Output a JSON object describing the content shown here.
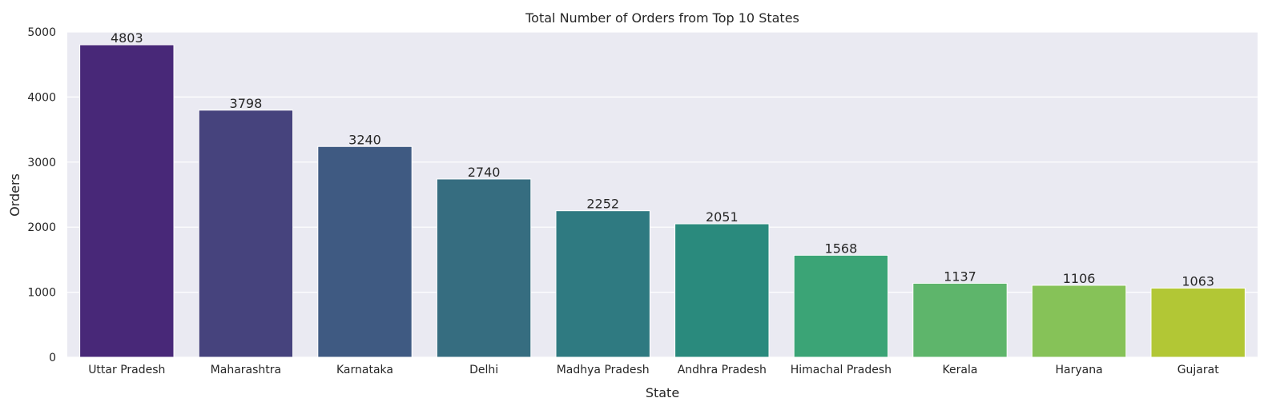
{
  "chart_data": {
    "type": "bar",
    "title": "Total Number of Orders from Top 10 States",
    "xlabel": "State",
    "ylabel": "Orders",
    "categories": [
      "Uttar Pradesh",
      "Maharashtra",
      "Karnataka",
      "Delhi",
      "Madhya Pradesh",
      "Andhra Pradesh",
      "Himachal Pradesh",
      "Kerala",
      "Haryana",
      "Gujarat"
    ],
    "values": [
      4803,
      3798,
      3240,
      2740,
      2252,
      2051,
      1568,
      1137,
      1106,
      1063
    ],
    "data_labels": [
      "4803",
      "3798",
      "3240",
      "2740",
      "2252",
      "2051",
      "1568",
      "1137",
      "1106",
      "1063"
    ],
    "colors": [
      "#482878",
      "#46437d",
      "#3f5a82",
      "#366d80",
      "#2f7a81",
      "#2a8a7d",
      "#3ba476",
      "#5eb56b",
      "#86c258",
      "#b2c735"
    ],
    "ylim": [
      0,
      5000
    ],
    "yticks": [
      0,
      1000,
      2000,
      3000,
      4000,
      5000
    ],
    "ytick_labels": [
      "0",
      "1000",
      "2000",
      "3000",
      "4000",
      "5000"
    ],
    "grid": true,
    "grid_axis": "y",
    "background": "#eaeaf2",
    "grid_color": "#ffffff"
  }
}
